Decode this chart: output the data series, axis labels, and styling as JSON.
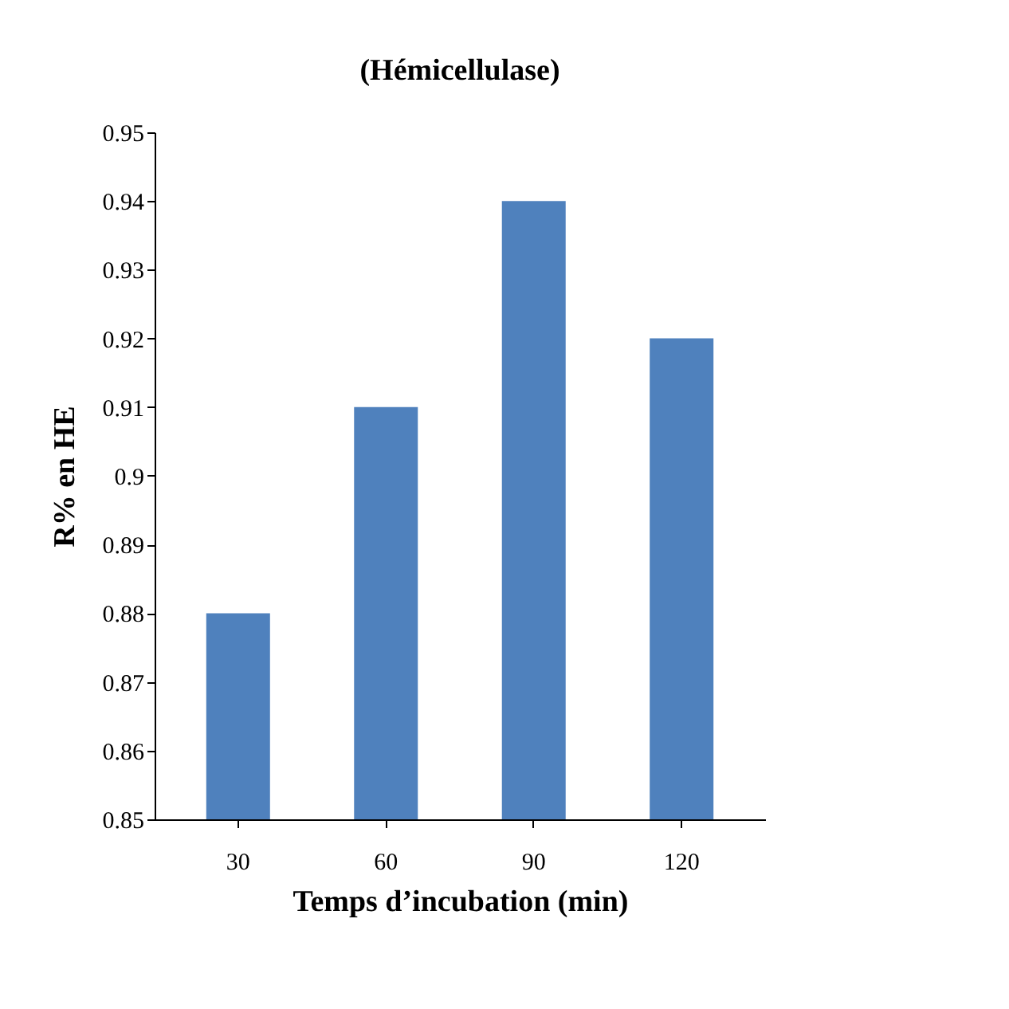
{
  "chart_data": {
    "type": "bar",
    "title": "(Hémicellulase)",
    "xlabel": "Temps d’incubation (min)",
    "ylabel": "R% en HE",
    "categories": [
      "30",
      "60",
      "90",
      "120"
    ],
    "values": [
      0.88,
      0.91,
      0.94,
      0.92
    ],
    "color": "#4f81bd",
    "ylim": [
      0.85,
      0.95
    ],
    "yticks": [
      0.85,
      0.86,
      0.87,
      0.88,
      0.89,
      0.9,
      0.91,
      0.92,
      0.93,
      0.94,
      0.95
    ],
    "grid": false
  }
}
